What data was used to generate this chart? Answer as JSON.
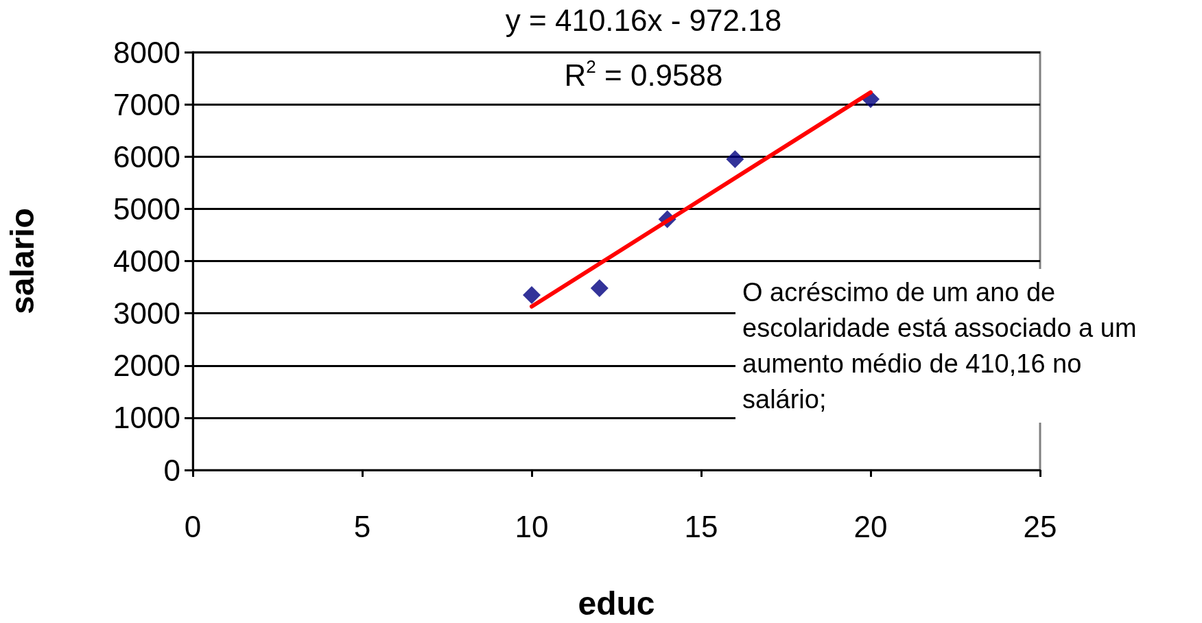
{
  "chart_data": {
    "type": "scatter",
    "xlabel": "educ",
    "ylabel": "salario",
    "x": [
      10,
      12,
      14,
      16,
      20
    ],
    "series": [
      {
        "color": "#000080",
        "marker": "diamond",
        "values": [
          3350,
          3480,
          4800,
          5950,
          7100
        ]
      },
      {
        "type": "line",
        "color": "#ff0000",
        "marker": "none",
        "line_style": "solid",
        "x": [
          10,
          20
        ],
        "values": [
          3130,
          7230
        ]
      }
    ],
    "xlim": [
      0,
      25
    ],
    "xticks": [
      0,
      5,
      10,
      15,
      20,
      25
    ],
    "ylim": [
      0,
      8000
    ],
    "yticks": [
      0,
      1000,
      2000,
      3000,
      4000,
      5000,
      6000,
      7000,
      8000
    ],
    "grid": "y",
    "annotations": [
      "y = 410.16x - 972.18",
      "R$^{2}$ = 0.9588",
      "O acréscimo de um ano de escolaridade está associado a um aumento médio de 410,16 no salário;"
    ]
  }
}
